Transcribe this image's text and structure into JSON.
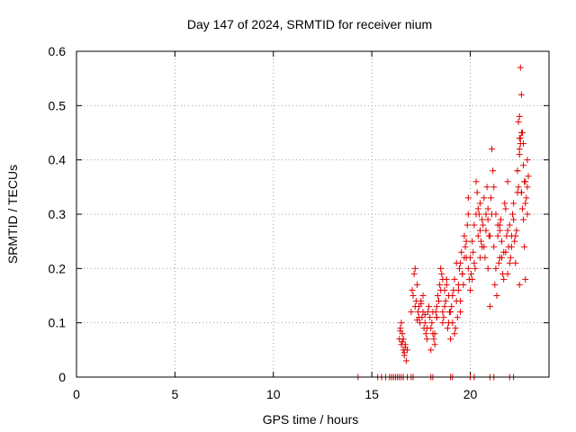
{
  "chart_data": {
    "type": "scatter",
    "title": "Day 147 of 2024, SRMTID for receiver nium",
    "xlabel": "GPS time / hours",
    "ylabel": "SRMTID / TECUs",
    "xlim": [
      0,
      24
    ],
    "ylim": [
      0,
      0.6
    ],
    "xticks": [
      0,
      5,
      10,
      15,
      20
    ],
    "xtick_labels": [
      "0",
      "5",
      "10",
      "15",
      "20"
    ],
    "yticks": [
      0,
      0.1,
      0.2,
      0.3,
      0.4,
      0.5,
      0.6
    ],
    "ytick_labels": [
      "0",
      "0.1",
      "0.2",
      "0.3",
      "0.4",
      "0.5",
      "0.6"
    ],
    "grid": true,
    "marker": "+",
    "series": [
      {
        "name": "SRMTID",
        "color": "#e00000",
        "x": [
          14.3,
          15.3,
          15.5,
          15.7,
          15.9,
          16.0,
          16.1,
          16.2,
          16.3,
          16.4,
          16.5,
          16.6,
          16.8,
          17.0,
          17.1,
          18.0,
          18.1,
          19.0,
          19.1,
          20.0,
          20.2,
          21.0,
          21.2,
          22.0,
          22.2,
          16.4,
          16.45,
          16.5,
          16.55,
          16.6,
          16.65,
          16.7,
          16.75,
          16.8,
          16.5,
          16.6,
          16.7,
          16.45,
          16.55,
          16.65,
          17.0,
          17.1,
          17.2,
          17.3,
          17.4,
          17.5,
          17.6,
          17.7,
          17.8,
          17.9,
          17.05,
          17.15,
          17.25,
          17.35,
          17.45,
          17.55,
          17.65,
          17.75,
          17.85,
          17.95,
          17.2,
          17.4,
          17.6,
          17.8,
          17.3,
          17.5,
          17.7,
          18.0,
          18.1,
          18.2,
          18.3,
          18.4,
          18.5,
          18.6,
          18.7,
          18.8,
          18.9,
          18.05,
          18.15,
          18.25,
          18.35,
          18.45,
          18.55,
          18.65,
          18.75,
          18.85,
          18.95,
          18.1,
          18.3,
          18.5,
          18.7,
          18.9,
          18.2,
          18.4,
          18.6,
          18.8,
          18.0,
          18.3,
          18.6,
          19.0,
          19.1,
          19.2,
          19.3,
          19.4,
          19.5,
          19.6,
          19.7,
          19.8,
          19.9,
          19.05,
          19.15,
          19.25,
          19.35,
          19.45,
          19.55,
          19.65,
          19.75,
          19.85,
          19.95,
          19.1,
          19.3,
          19.5,
          19.7,
          19.9,
          19.2,
          19.4,
          19.6,
          19.8,
          19.0,
          19.5,
          19.9,
          20.0,
          20.1,
          20.2,
          20.3,
          20.4,
          20.5,
          20.6,
          20.7,
          20.8,
          20.9,
          20.05,
          20.15,
          20.25,
          20.35,
          20.45,
          20.55,
          20.65,
          20.75,
          20.85,
          20.95,
          20.1,
          20.3,
          20.5,
          20.7,
          20.9,
          20.2,
          20.4,
          20.6,
          20.8,
          20.0,
          20.5,
          20.9,
          21.0,
          21.1,
          21.2,
          21.3,
          21.4,
          21.5,
          21.6,
          21.7,
          21.8,
          21.9,
          21.05,
          21.15,
          21.25,
          21.35,
          21.45,
          21.55,
          21.65,
          21.75,
          21.85,
          21.95,
          21.1,
          21.3,
          21.5,
          21.7,
          21.9,
          21.2,
          21.4,
          21.6,
          21.8,
          21.0,
          21.5,
          21.9,
          22.0,
          22.1,
          22.2,
          22.3,
          22.4,
          22.5,
          22.6,
          22.7,
          22.8,
          22.9,
          22.05,
          22.15,
          22.25,
          22.35,
          22.45,
          22.55,
          22.65,
          22.75,
          22.85,
          22.95,
          22.1,
          22.3,
          22.5,
          22.7,
          22.9,
          22.2,
          22.4,
          22.6,
          22.8,
          22.0,
          22.5,
          22.9,
          22.55,
          22.6,
          22.5,
          22.45,
          22.65,
          22.55,
          22.7,
          22.4,
          22.75,
          22.6,
          22.8,
          22.5
        ],
        "y": [
          0,
          0,
          0,
          0,
          0,
          0,
          0,
          0,
          0,
          0,
          0,
          0,
          0,
          0,
          0,
          0,
          0,
          0,
          0,
          0,
          0,
          0,
          0,
          0,
          0,
          0.07,
          0.09,
          0.06,
          0.08,
          0.05,
          0.04,
          0.06,
          0.03,
          0.05,
          0.1,
          0.07,
          0.055,
          0.085,
          0.065,
          0.045,
          0.12,
          0.15,
          0.13,
          0.17,
          0.11,
          0.14,
          0.12,
          0.1,
          0.09,
          0.13,
          0.16,
          0.19,
          0.14,
          0.12,
          0.1,
          0.11,
          0.09,
          0.08,
          0.12,
          0.11,
          0.2,
          0.13,
          0.15,
          0.07,
          0.105,
          0.135,
          0.115,
          0.09,
          0.12,
          0.08,
          0.11,
          0.14,
          0.16,
          0.1,
          0.13,
          0.18,
          0.15,
          0.1,
          0.07,
          0.12,
          0.15,
          0.17,
          0.19,
          0.11,
          0.14,
          0.09,
          0.12,
          0.08,
          0.13,
          0.2,
          0.16,
          0.1,
          0.06,
          0.14,
          0.12,
          0.17,
          0.05,
          0.11,
          0.18,
          0.12,
          0.15,
          0.18,
          0.21,
          0.17,
          0.14,
          0.19,
          0.22,
          0.25,
          0.2,
          0.13,
          0.16,
          0.09,
          0.11,
          0.2,
          0.23,
          0.17,
          0.24,
          0.28,
          0.18,
          0.1,
          0.14,
          0.21,
          0.26,
          0.3,
          0.08,
          0.16,
          0.19,
          0.22,
          0.07,
          0.12,
          0.33,
          0.22,
          0.25,
          0.28,
          0.3,
          0.26,
          0.32,
          0.29,
          0.24,
          0.27,
          0.31,
          0.19,
          0.23,
          0.2,
          0.34,
          0.3,
          0.25,
          0.28,
          0.22,
          0.35,
          0.26,
          0.18,
          0.36,
          0.27,
          0.33,
          0.29,
          0.21,
          0.31,
          0.24,
          0.3,
          0.16,
          0.22,
          0.2,
          0.26,
          0.3,
          0.24,
          0.2,
          0.28,
          0.22,
          0.25,
          0.18,
          0.23,
          0.27,
          0.33,
          0.38,
          0.17,
          0.15,
          0.21,
          0.29,
          0.19,
          0.32,
          0.26,
          0.24,
          0.42,
          0.3,
          0.28,
          0.23,
          0.19,
          0.35,
          0.26,
          0.22,
          0.31,
          0.13,
          0.27,
          0.36,
          0.28,
          0.24,
          0.32,
          0.26,
          0.38,
          0.44,
          0.34,
          0.29,
          0.36,
          0.4,
          0.22,
          0.3,
          0.25,
          0.27,
          0.35,
          0.43,
          0.31,
          0.24,
          0.33,
          0.37,
          0.26,
          0.21,
          0.42,
          0.39,
          0.3,
          0.29,
          0.34,
          0.45,
          0.32,
          0.21,
          0.41,
          0.35,
          0.57,
          0.52,
          0.48,
          0.47,
          0.45,
          0.44,
          0.43,
          0.38,
          0.36,
          0.34,
          0.18,
          0.17
        ]
      }
    ]
  }
}
